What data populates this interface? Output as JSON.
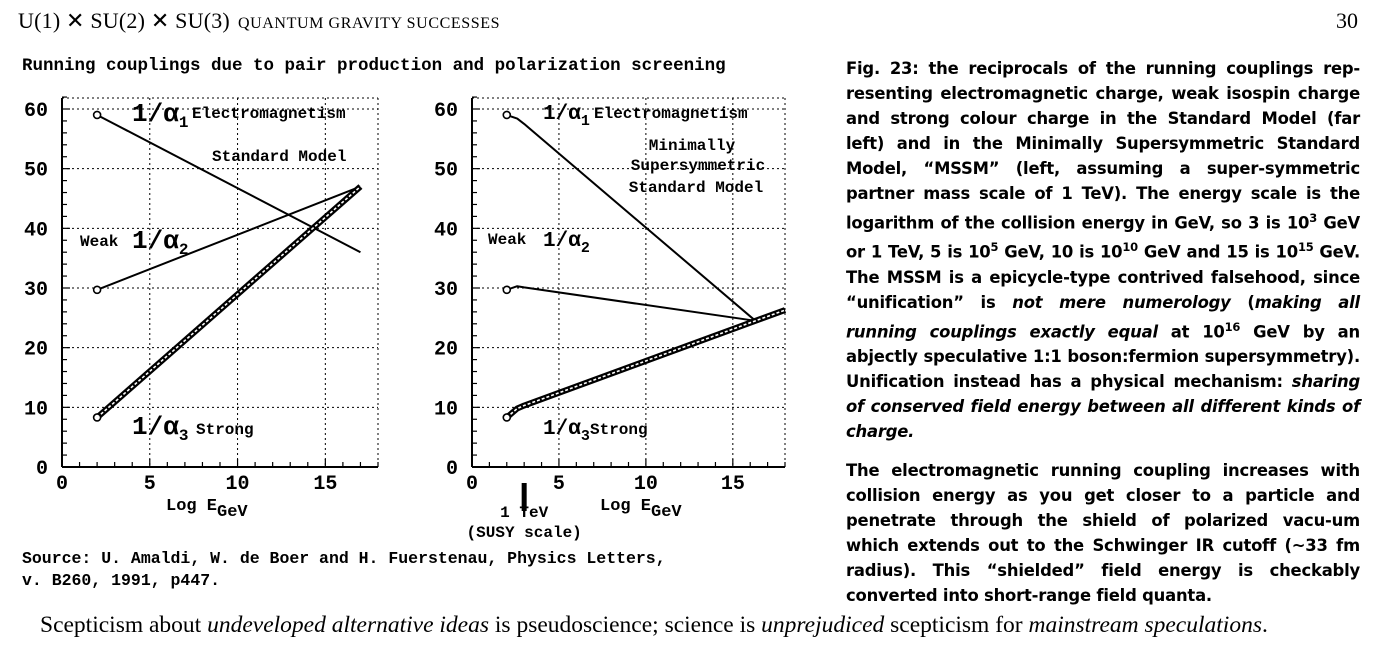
{
  "header": {
    "title_main": "U(1) ✕ SU(2) ✕ SU(3)",
    "title_sc": "QUANTUM GRAVITY SUCCESSES",
    "page_number": "30"
  },
  "plot_title": "Running couplings due to pair production and polarization screening",
  "chart_data": [
    {
      "type": "line",
      "title": "Standard Model",
      "xlabel": "Log E",
      "xlabel_sub": "GeV",
      "ylabel": "",
      "xlim": [
        0,
        18
      ],
      "ylim": [
        0,
        63
      ],
      "xticks": [
        0,
        5,
        10,
        15
      ],
      "yticks": [
        0,
        10,
        20,
        30,
        40,
        50,
        60
      ],
      "grid": true,
      "series": [
        {
          "name": "1/α₁ Electromagnetism",
          "x": [
            2,
            17
          ],
          "y": [
            59,
            36
          ]
        },
        {
          "name": "Weak 1/α₂",
          "x": [
            2,
            17
          ],
          "y": [
            29.7,
            47
          ]
        },
        {
          "name": "1/α₃ Strong",
          "x": [
            2,
            17
          ],
          "y": [
            8.3,
            47
          ]
        }
      ],
      "labels": {
        "em_prefix": "1/α",
        "em_sub": "1",
        "em_name": "Electromagnetism",
        "weak_name": "Weak",
        "weak_prefix": "1/α",
        "weak_sub": "2",
        "strong_prefix": "1/α",
        "strong_sub": "3",
        "strong_name": "Strong",
        "model_line1": "Standard Model"
      }
    },
    {
      "type": "line",
      "title": "Minimally Supersymmetric Standard Model",
      "xlabel": "Log E",
      "xlabel_sub": "GeV",
      "ylabel": "",
      "xlim": [
        0,
        18
      ],
      "ylim": [
        0,
        63
      ],
      "xticks": [
        0,
        5,
        10,
        15
      ],
      "yticks": [
        0,
        10,
        20,
        30,
        40,
        50,
        60
      ],
      "grid": true,
      "series": [
        {
          "name": "1/α₁ Electromagnetism",
          "x": [
            2,
            2.6,
            3,
            16.3,
            18
          ],
          "y": [
            59,
            58.4,
            57.5,
            24.5,
            26
          ]
        },
        {
          "name": "Weak 1/α₂",
          "x": [
            2,
            2.6,
            3,
            16.3
          ],
          "y": [
            29.7,
            30.3,
            30.1,
            24.5
          ]
        },
        {
          "name": "1/α₃ Strong",
          "x": [
            2,
            2.6,
            3,
            16.3,
            18
          ],
          "y": [
            8.3,
            9.8,
            10.3,
            24.5,
            26.3
          ]
        }
      ],
      "annotation": {
        "x": 3,
        "text_line1": "1 TeV",
        "text_line2": "(SUSY scale)"
      },
      "labels": {
        "em_prefix": "1/α",
        "em_sub": "1",
        "em_name": "Electromagnetism",
        "weak_name": "Weak",
        "weak_prefix": "1/α",
        "weak_sub": "2",
        "strong_prefix": "1/α",
        "strong_sub": "3",
        "strong_name": "Strong",
        "model_line1": "Minimally",
        "model_line2": "Supersymmetric",
        "model_line3": "Standard Model"
      }
    }
  ],
  "source": {
    "line1": "Source: U. Amaldi, W. de Boer and H. Fuerstenau, Physics Letters,",
    "line2": "v. B260, 1991, p447."
  },
  "caption": {
    "p1_parts": [
      {
        "t": "Fig. 23: the reciprocals of the running couplings rep-resenting electromagnetic charge, weak isospin charge and strong colour charge in the Standard Model (far left) and in the Minimally Supersymmetric Standard Model, “MSSM” (left, assuming a super-symmetric partner mass scale of 1 TeV).  The energy scale is the logarithm of the collision energy in GeV, so 3 is 10",
        "s": "n"
      },
      {
        "t": "3",
        "s": "sup"
      },
      {
        "t": " GeV or 1 TeV, 5 is 10",
        "s": "n"
      },
      {
        "t": "5",
        "s": "sup"
      },
      {
        "t": " GeV, 10 is 10",
        "s": "n"
      },
      {
        "t": "10",
        "s": "sup"
      },
      {
        "t": " GeV and 15 is 10",
        "s": "n"
      },
      {
        "t": "15",
        "s": "sup"
      },
      {
        "t": " GeV.  The MSSM is a epicycle-type contrived falsehood, since “unification” is ",
        "s": "n"
      },
      {
        "t": "not mere numerology",
        "s": "i"
      },
      {
        "t": " (",
        "s": "n"
      },
      {
        "t": "making all running couplings exactly equal",
        "s": "i"
      },
      {
        "t": " at 10",
        "s": "n"
      },
      {
        "t": "16",
        "s": "sup"
      },
      {
        "t": " GeV by an abjectly speculative 1:1 boson:fermion supersymmetry).  Unification instead has a physical mechanism: ",
        "s": "n"
      },
      {
        "t": "sharing of conserved field energy between all different kinds of charge.",
        "s": "i"
      }
    ],
    "p2": "The electromagnetic running coupling increases with collision energy as you get closer to a particle and penetrate through the shield of polarized vacu-um which extends out to the Schwinger IR cutoff (~33 fm radius).  This “shielded” field energy is checkably converted into short-range field quanta."
  },
  "footer_parts": [
    {
      "t": "Scepticism about ",
      "s": "n"
    },
    {
      "t": "undeveloped alternative ideas",
      "s": "i"
    },
    {
      "t": " is pseudoscience; science is ",
      "s": "n"
    },
    {
      "t": "unprejudiced",
      "s": "i"
    },
    {
      "t": " scepticism for ",
      "s": "n"
    },
    {
      "t": "mainstream speculations",
      "s": "i"
    },
    {
      "t": ".",
      "s": "n"
    }
  ]
}
